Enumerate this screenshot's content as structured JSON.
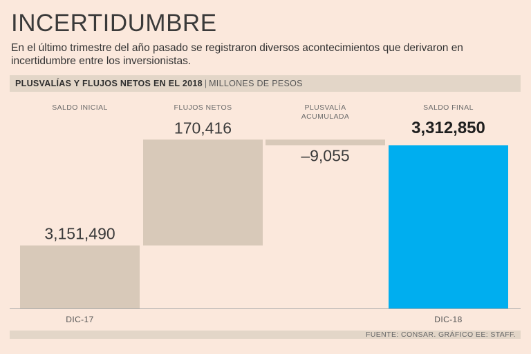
{
  "header": {
    "title": "INCERTIDUMBRE",
    "subtitle": "En el último trimestre del año pasado se registraron diversos acontecimientos que derivaron en incertidumbre entre los inversionistas."
  },
  "band": {
    "strong": "PLUSVALÍAS Y FLUJOS NETOS EN EL 2018",
    "separator": "|",
    "light": "MILLONES DE PESOS"
  },
  "colors": {
    "background": "#fbe8dc",
    "band": "#e3d6c8",
    "bar_neutral": "#d8c9b9",
    "bar_final": "#00aeef",
    "axis": "#aaaaaa"
  },
  "chart_data": {
    "type": "waterfall",
    "unit": "Millones de pesos",
    "steps": [
      {
        "category": "SALDO INICIAL",
        "value": 3151490,
        "label": "3,151,490",
        "kind": "total",
        "xlabel": "DIC-17"
      },
      {
        "category": "FLUJOS NETOS",
        "value": 170416,
        "label": "170,416",
        "kind": "delta",
        "xlabel": ""
      },
      {
        "category": "PLUSVALÍA ACUMULADA",
        "value": -9055,
        "label": "–9,055",
        "kind": "delta",
        "xlabel": ""
      },
      {
        "category": "SALDO FINAL",
        "value": 3312850,
        "label": "3,312,850",
        "kind": "total",
        "xlabel": "DIC-18"
      }
    ],
    "ylim": [
      3050000,
      3330000
    ]
  },
  "footer": {
    "source": "FUENTE: CONSAR. GRÁFICO EE: STAFF."
  }
}
